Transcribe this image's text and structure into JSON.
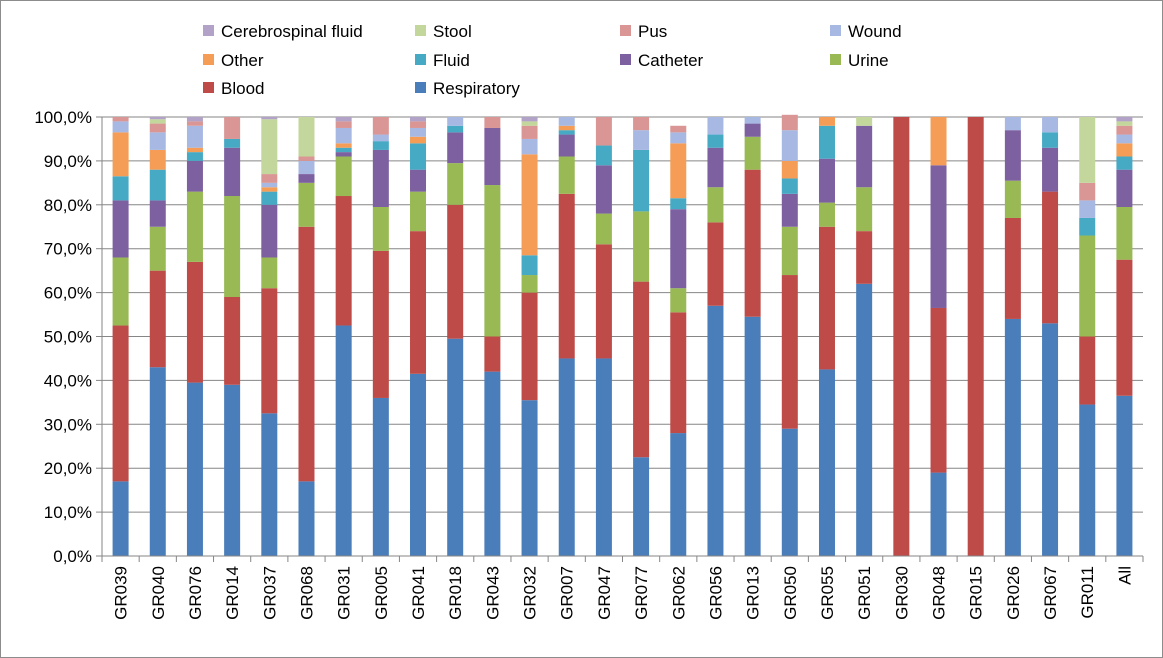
{
  "chart_data": {
    "type": "bar",
    "stacked": true,
    "title": "",
    "xlabel": "",
    "ylabel": "",
    "ylim": [
      0,
      100
    ],
    "yticks": [
      "0,0%",
      "10,0%",
      "20,0%",
      "30,0%",
      "40,0%",
      "50,0%",
      "60,0%",
      "70,0%",
      "80,0%",
      "90,0%",
      "100,0%"
    ],
    "grid": "horizontal",
    "legend_position": "top",
    "categories": [
      "GR039",
      "GR040",
      "GR076",
      "GR014",
      "GR037",
      "GR068",
      "GR031",
      "GR005",
      "GR041",
      "GR018",
      "GR043",
      "GR032",
      "GR007",
      "GR047",
      "GR077",
      "GR062",
      "GR056",
      "GR013",
      "GR050",
      "GR055",
      "GR051",
      "GR030",
      "GR048",
      "GR015",
      "GR026",
      "GR067",
      "GR011",
      "All"
    ],
    "series": [
      {
        "name": "Respiratory",
        "color": "#4a7ebb",
        "values": [
          17,
          43,
          39.5,
          39,
          32.5,
          17,
          52.5,
          36,
          41.5,
          49.5,
          42,
          35.5,
          45,
          45,
          22.5,
          28,
          57,
          54.5,
          29,
          42.5,
          62,
          0,
          19,
          0,
          54,
          53,
          34.5,
          36.5
        ]
      },
      {
        "name": "Blood",
        "color": "#be4b48",
        "values": [
          35.5,
          22,
          27.5,
          20,
          28.5,
          58,
          29.5,
          33.5,
          32.5,
          30.5,
          8,
          24.5,
          37.5,
          26,
          40,
          27.5,
          19,
          33.5,
          35,
          32.5,
          12,
          100,
          37.5,
          100,
          23,
          30,
          15.5,
          31
        ]
      },
      {
        "name": "Urine",
        "color": "#98b954",
        "values": [
          15.5,
          10,
          16,
          23,
          7,
          10,
          9,
          10,
          9,
          9.5,
          34.5,
          4,
          8.5,
          7,
          16,
          5.5,
          8,
          7.5,
          11,
          5.5,
          10,
          0,
          0,
          0,
          8.5,
          0,
          23,
          12
        ]
      },
      {
        "name": "Catheter",
        "color": "#7d60a0",
        "values": [
          13,
          6,
          7,
          11,
          12,
          2,
          1,
          13,
          5,
          7,
          13,
          0,
          5,
          11,
          0,
          18,
          9,
          3,
          7.5,
          10,
          14,
          0,
          32.5,
          0,
          11.5,
          10,
          0,
          8.5
        ]
      },
      {
        "name": "Fluid",
        "color": "#46aac5",
        "values": [
          5.5,
          7,
          2,
          2,
          3,
          0,
          1,
          2,
          6,
          1.5,
          0,
          4.5,
          1,
          4.5,
          14,
          2.5,
          3,
          0,
          3.5,
          7.5,
          0,
          0,
          0,
          0,
          0,
          3.5,
          4,
          3
        ]
      },
      {
        "name": "Other",
        "color": "#f59d56",
        "values": [
          10,
          4.5,
          1,
          0,
          1,
          0,
          1,
          0,
          1.5,
          0,
          0,
          23,
          1,
          0,
          0,
          12.5,
          0,
          0,
          4,
          2,
          0,
          0,
          11,
          0,
          0,
          0,
          0,
          3
        ]
      },
      {
        "name": "Wound",
        "color": "#a7b9e3",
        "values": [
          2.5,
          4,
          5,
          0,
          1,
          3,
          3.5,
          1.5,
          2,
          2,
          0,
          3.5,
          2,
          0,
          4.5,
          2.5,
          4,
          1.5,
          7,
          0,
          0,
          0,
          0,
          0,
          3,
          3.5,
          4,
          2
        ]
      },
      {
        "name": "Pus",
        "color": "#d99694",
        "values": [
          1,
          2,
          1,
          5,
          2,
          1,
          1.5,
          4,
          1.5,
          0,
          2.5,
          3,
          0,
          6.5,
          3,
          1.5,
          0,
          0,
          3.5,
          0,
          0,
          0,
          0,
          0,
          0,
          0,
          4,
          2
        ]
      },
      {
        "name": "Stool",
        "color": "#c3d69b",
        "values": [
          0,
          1,
          0,
          0,
          12.5,
          9,
          0,
          0,
          0,
          0,
          0,
          1,
          0,
          0,
          0,
          0,
          0,
          0,
          0,
          0,
          2,
          0,
          0,
          0,
          0,
          0,
          15,
          1
        ]
      },
      {
        "name": "Cerebrospinal fluid",
        "color": "#b3a2c7",
        "values": [
          0,
          0.5,
          1,
          0,
          0.5,
          0,
          1,
          0,
          1,
          0,
          0,
          1,
          0,
          0,
          0,
          0,
          0,
          0,
          0,
          0,
          0,
          0,
          0,
          0,
          0,
          0,
          0,
          1
        ]
      }
    ],
    "legend_order": [
      "Cerebrospinal fluid",
      "Stool",
      "Pus",
      "Wound",
      "Other",
      "Fluid",
      "Catheter",
      "Urine",
      "Blood",
      "Respiratory"
    ]
  }
}
